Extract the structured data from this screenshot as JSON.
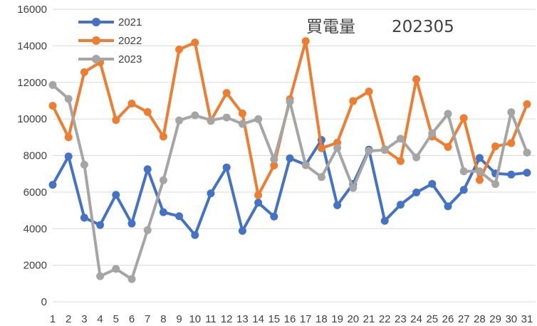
{
  "chart_data": {
    "type": "line",
    "title": "買電量",
    "subtitle": "202305",
    "xlabel": "",
    "ylabel": "",
    "categories": [
      "1",
      "2",
      "3",
      "4",
      "5",
      "6",
      "7",
      "8",
      "9",
      "10",
      "11",
      "12",
      "13",
      "14",
      "15",
      "16",
      "17",
      "18",
      "19",
      "20",
      "21",
      "22",
      "23",
      "24",
      "25",
      "26",
      "27",
      "28",
      "29",
      "30",
      "31"
    ],
    "ylim": [
      0,
      16000
    ],
    "yticks": [
      0,
      2000,
      4000,
      6000,
      8000,
      10000,
      12000,
      14000,
      16000
    ],
    "grid": "horizontal",
    "legend_position": "top-left",
    "series": [
      {
        "name": "2021",
        "color": "#4472C4",
        "values": [
          6400,
          7950,
          4600,
          4200,
          5850,
          4280,
          7250,
          4900,
          4680,
          3650,
          5930,
          7350,
          3880,
          5420,
          4660,
          7850,
          7500,
          8850,
          5280,
          6450,
          8320,
          4430,
          5310,
          5980,
          6450,
          5220,
          6120,
          7870,
          7020,
          6960,
          7060
        ]
      },
      {
        "name": "2022",
        "color": "#ED7D31",
        "values": [
          10720,
          9000,
          12560,
          13100,
          9940,
          10840,
          10380,
          9030,
          13800,
          14180,
          9900,
          11420,
          10300,
          5830,
          7460,
          11080,
          14260,
          8400,
          8700,
          10980,
          11500,
          8330,
          7700,
          12170,
          9040,
          8470,
          10050,
          6660,
          8500,
          8680,
          10810
        ]
      },
      {
        "name": "2023",
        "color": "#A5A5A5",
        "values": [
          11860,
          11100,
          7500,
          1400,
          1800,
          1240,
          3920,
          6650,
          9920,
          10200,
          9930,
          10080,
          9730,
          9990,
          7790,
          10950,
          7470,
          6820,
          8420,
          6230,
          8250,
          8300,
          8920,
          7900,
          9210,
          10280,
          7140,
          7140,
          6440,
          10370,
          8160
        ]
      }
    ]
  }
}
